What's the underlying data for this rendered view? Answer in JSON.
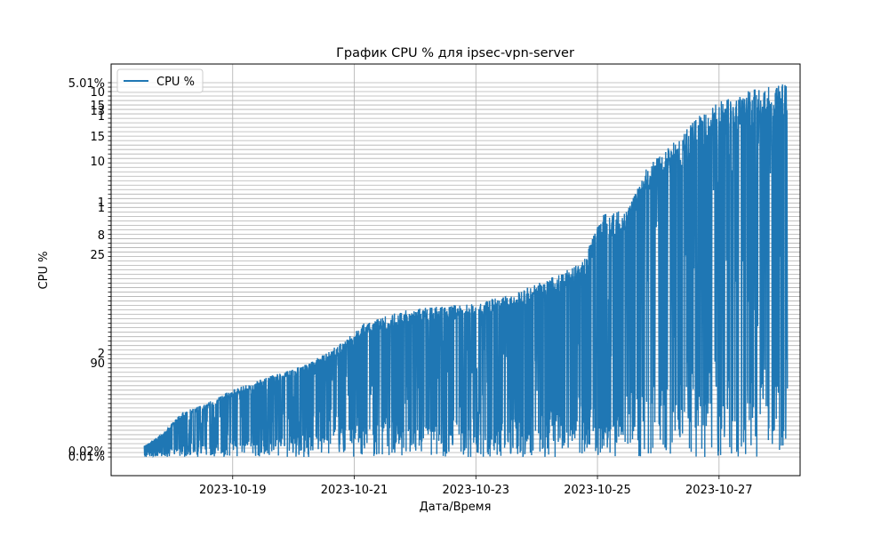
{
  "chart_data": {
    "type": "line",
    "title": "График CPU % для ipsec-vpn-server",
    "xlabel": "Дата/Время",
    "ylabel": "CPU %",
    "x_range": [
      "2023-10-17T00:00",
      "2023-10-28T08:00"
    ],
    "x_ticks": [
      "2023-10-19",
      "2023-10-21",
      "2023-10-23",
      "2023-10-25",
      "2023-10-27"
    ],
    "y_tick_labels_visible": [
      "0.01%",
      "0.02%",
      "90",
      "2",
      "25",
      "8",
      "1",
      "1",
      "10",
      "15",
      "1",
      "13",
      "15",
      "10",
      "5.01%"
    ],
    "grid": true,
    "legend": {
      "position": "top-left",
      "entries": [
        "CPU %"
      ]
    },
    "series": [
      {
        "name": "CPU %",
        "color": "#1f77b4",
        "start": "2023-10-17T13:00",
        "end": "2023-10-28T03:00",
        "envelope": [
          [
            "2023-10-17T13:00",
            3
          ],
          [
            "2023-10-17T20:00",
            6
          ],
          [
            "2023-10-18T04:00",
            12
          ],
          [
            "2023-10-18T12:00",
            14
          ],
          [
            "2023-10-19T00:00",
            18
          ],
          [
            "2023-10-19T12:00",
            21
          ],
          [
            "2023-10-20T06:00",
            25
          ],
          [
            "2023-10-20T20:00",
            31
          ],
          [
            "2023-10-21T04:00",
            36
          ],
          [
            "2023-10-21T18:00",
            39
          ],
          [
            "2023-10-22T06:00",
            40
          ],
          [
            "2023-10-22T22:00",
            41
          ],
          [
            "2023-10-23T12:00",
            43
          ],
          [
            "2023-10-24T06:00",
            48
          ],
          [
            "2023-10-24T18:00",
            52
          ],
          [
            "2023-10-25T02:00",
            65
          ],
          [
            "2023-10-25T12:00",
            66
          ],
          [
            "2023-10-25T20:00",
            78
          ],
          [
            "2023-10-26T06:00",
            84
          ],
          [
            "2023-10-26T16:00",
            91
          ],
          [
            "2023-10-27T00:00",
            95
          ],
          [
            "2023-10-27T12:00",
            98
          ],
          [
            "2023-10-28T03:00",
            100
          ]
        ]
      }
    ]
  }
}
